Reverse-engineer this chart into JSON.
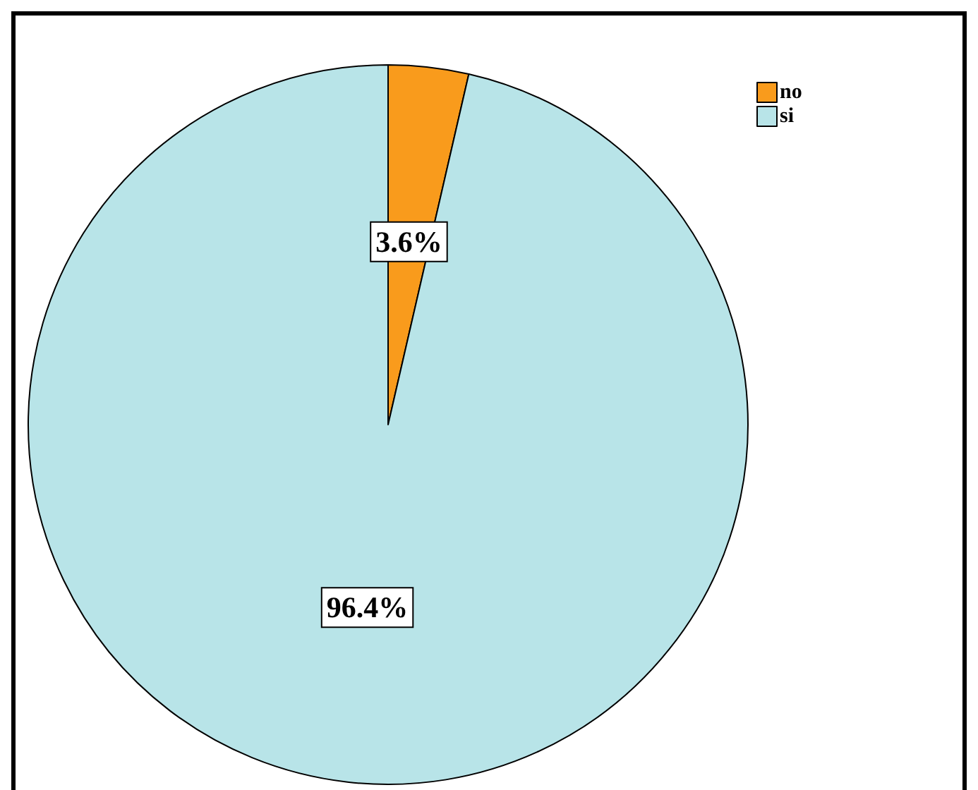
{
  "chart_data": {
    "type": "pie",
    "categories": [
      "no",
      "si"
    ],
    "values": [
      3.6,
      96.4
    ],
    "colors": [
      "#f99b1c",
      "#b8e4e8"
    ],
    "value_labels": [
      "3.6%",
      "96.4%"
    ],
    "legend": "top right"
  }
}
